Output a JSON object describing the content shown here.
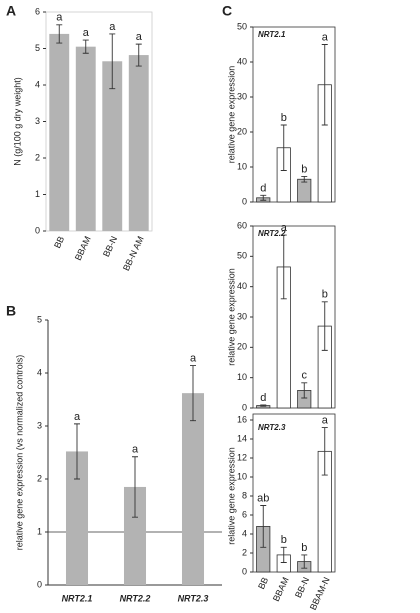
{
  "chart_data": [
    {
      "type": "bar",
      "panel": "A",
      "ylabel": "N (g/100 g dry weight)",
      "categories": [
        "BB",
        "BBAM",
        "BB-N",
        "BB-N AM"
      ],
      "values": [
        5.4,
        5.05,
        4.65,
        4.82
      ],
      "errors": [
        0.25,
        0.18,
        0.75,
        0.3
      ],
      "annotations": [
        "a",
        "a",
        "a",
        "a"
      ],
      "color": "#b3b3b3",
      "ylim": [
        0,
        6
      ],
      "yticks": [
        0,
        1,
        2,
        3,
        4,
        5,
        6
      ]
    },
    {
      "type": "bar",
      "panel": "B",
      "ylabel": "relative gene expression (vs normalized controls)",
      "categories": [
        "NRT2.1",
        "NRT2.2",
        "NRT2.3"
      ],
      "values": [
        2.52,
        1.85,
        3.62
      ],
      "errors": [
        0.52,
        0.57,
        0.52
      ],
      "annotations": [
        "a",
        "a",
        "a"
      ],
      "color": "#b3b3b3",
      "reference_line": 1,
      "ylim": [
        0,
        5
      ],
      "yticks": [
        0,
        1,
        2,
        3,
        4,
        5
      ]
    },
    {
      "type": "bar",
      "panel": "C",
      "title": "NRT2.1",
      "ylabel": "relative gene expression",
      "values": [
        1.2,
        15.5,
        6.5,
        33.5
      ],
      "errors": [
        0.7,
        6.5,
        0.8,
        11.5
      ],
      "annotations": [
        "d",
        "b",
        "b",
        "a"
      ],
      "colors": [
        "#b3b3b3",
        "#ffffff",
        "#b3b3b3",
        "#ffffff"
      ],
      "ylim": [
        0,
        50
      ],
      "yticks": [
        0,
        10,
        20,
        30,
        40,
        50
      ]
    },
    {
      "type": "bar",
      "title": "NRT2.2",
      "ylabel": "relative gene expression",
      "values": [
        0.8,
        46.5,
        5.8,
        27
      ],
      "errors": [
        0.2,
        10.5,
        2.5,
        8
      ],
      "annotations": [
        "d",
        "a",
        "c",
        "b"
      ],
      "colors": [
        "#b3b3b3",
        "#ffffff",
        "#b3b3b3",
        "#ffffff"
      ],
      "ylim": [
        0,
        60
      ],
      "yticks": [
        0,
        10,
        20,
        30,
        40,
        50,
        60
      ]
    },
    {
      "type": "bar",
      "title": "NRT2.3",
      "ylabel": "relative gene expression",
      "categories": [
        "BB",
        "BBAM",
        "BB-N",
        "BBAM-N"
      ],
      "values": [
        4.8,
        1.8,
        1.1,
        12.7
      ],
      "errors": [
        2.2,
        0.8,
        0.7,
        2.5
      ],
      "annotations": [
        "ab",
        "b",
        "b",
        "a"
      ],
      "colors": [
        "#b3b3b3",
        "#ffffff",
        "#b3b3b3",
        "#ffffff"
      ],
      "ylim": [
        0,
        16
      ],
      "yticks": [
        0,
        2,
        4,
        6,
        8,
        10,
        12,
        14,
        16
      ]
    }
  ]
}
